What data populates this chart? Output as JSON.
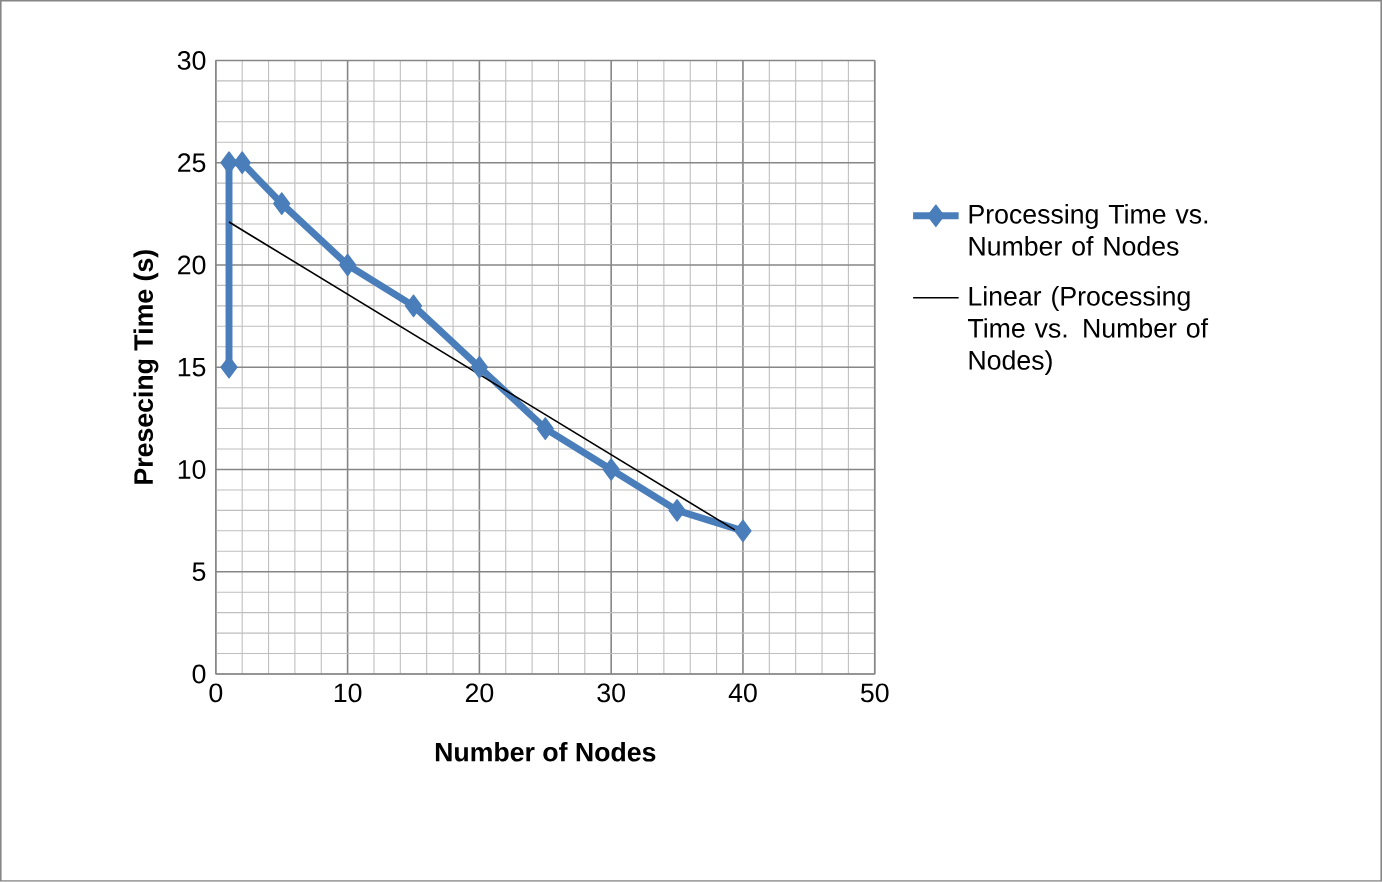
{
  "chart_data": {
    "type": "line",
    "xlabel": "Number of Nodes",
    "ylabel": "Presecing Time (s)",
    "xlim": [
      0,
      50
    ],
    "ylim": [
      0,
      30
    ],
    "xticks": [
      0,
      10,
      20,
      30,
      40,
      50
    ],
    "yticks": [
      0,
      5,
      10,
      15,
      20,
      25,
      30
    ],
    "grid": true,
    "legend": "right",
    "series": [
      {
        "name": "Processing Time vs. Number of Nodes",
        "color": "#4a7ebb",
        "marker": "diamond",
        "line_style": "solid",
        "x": [
          1,
          1,
          2,
          5,
          10,
          15,
          20,
          25,
          30,
          35,
          40
        ],
        "values": [
          15,
          25,
          25,
          23,
          20,
          18,
          15,
          12,
          10,
          8,
          7
        ]
      },
      {
        "name": "Linear (Processing Time vs. Number of Nodes)",
        "color": "#000000",
        "marker": "none",
        "line_style": "solid",
        "x": [
          1,
          40
        ],
        "values": [
          22.1,
          6.8
        ]
      }
    ]
  }
}
